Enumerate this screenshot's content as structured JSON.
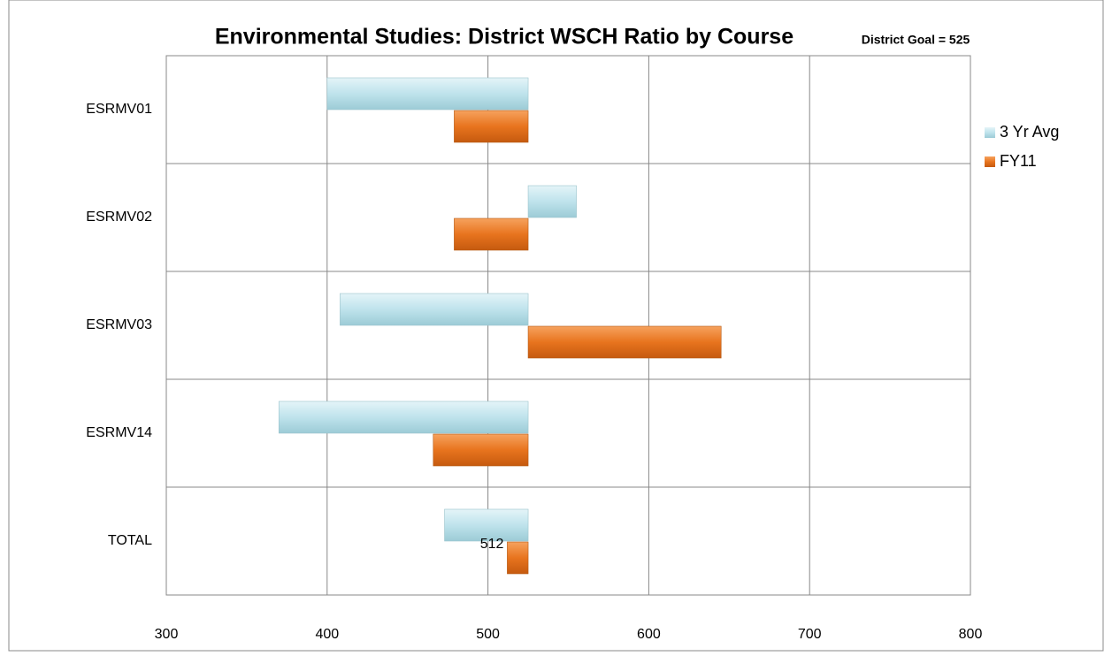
{
  "chart_data": {
    "type": "hbar",
    "title": "Environmental Studies: District WSCH Ratio by Course",
    "annotation": "District Goal = 525",
    "baseline": 525,
    "categories": [
      "ESRMV01",
      "ESRMV02",
      "ESRMV03",
      "ESRMV14",
      "TOTAL"
    ],
    "series": [
      {
        "name": "3 Yr Avg",
        "color": "#bfe3ec",
        "values": [
          400,
          555,
          408,
          370,
          473
        ]
      },
      {
        "name": "FY11",
        "color": "#e8741e",
        "values": [
          479,
          479,
          645,
          466,
          512
        ]
      }
    ],
    "data_labels": [
      [],
      [
        4
      ]
    ],
    "xlim": [
      300,
      800
    ],
    "xticks": [
      300,
      400,
      500,
      600,
      700,
      800
    ],
    "grid": true,
    "legend": "right"
  }
}
